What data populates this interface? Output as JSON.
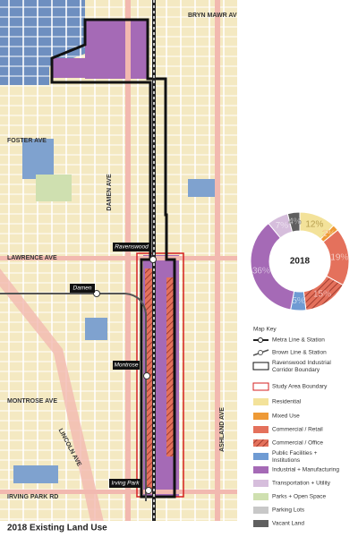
{
  "map": {
    "title": "2018 Existing Land Use",
    "streets": [
      "BRYN MAWR AVE",
      "FOSTER AVE",
      "DAMEN AVE",
      "LAWRENCE AVE",
      "MONTROSE AVE",
      "LINCOLN AVE",
      "ASHLAND AVE",
      "IRVING PARK RD"
    ],
    "stations": [
      "Ravenswood",
      "Damen",
      "Montrose",
      "Irving Park"
    ],
    "legend": {
      "title": "Map Key",
      "items": [
        "Metra Line & Station",
        "Brown Line & Station",
        "Ravenswood Industrial Corridor Boundary",
        "Study Area Boundary",
        "Residential",
        "Mixed Use",
        "Commercial / Retail",
        "Commercial / Office",
        "Public Facilities + Institutions",
        "Industrial + Manufacturing",
        "Transportation + Utility",
        "Parks + Open Space",
        "Parking Lots",
        "Vacant Land"
      ]
    }
  },
  "chart_data": {
    "type": "donut",
    "center_label": "2018",
    "values": [
      12,
      2,
      19,
      15,
      5,
      36,
      7,
      4
    ],
    "value_labels": [
      "12%",
      "2%",
      "19%",
      "15%",
      "5%",
      "36%",
      "7%",
      "4%"
    ],
    "colors": [
      "#f3e29a",
      "#ee9a36",
      "#e4715c",
      "#d9584a",
      "#6f9bd3",
      "#a56ab6",
      "#d6bedc",
      "#5f5f5f"
    ]
  }
}
